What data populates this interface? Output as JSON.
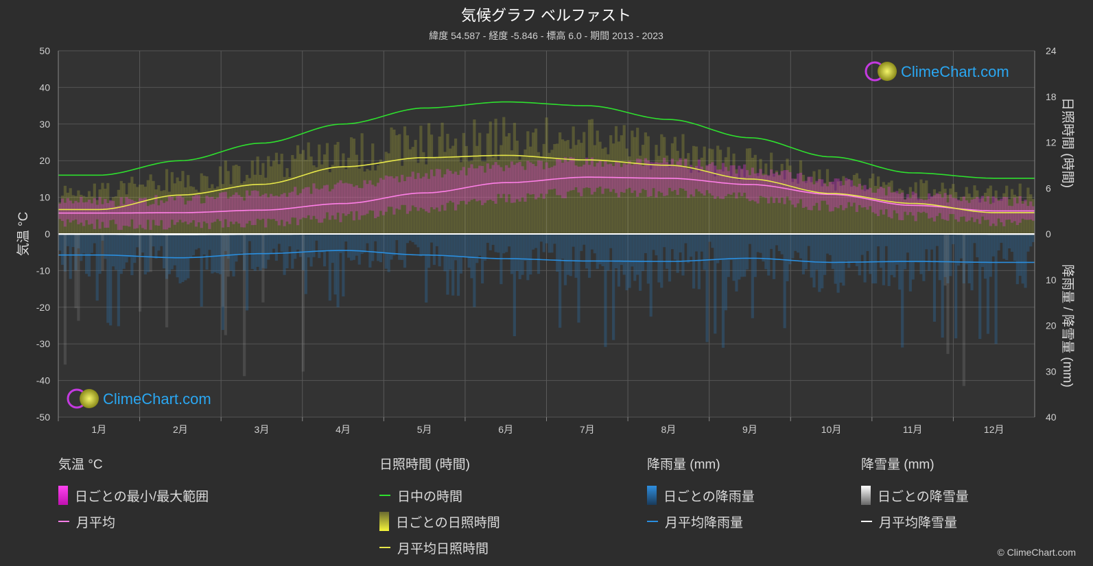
{
  "title": "気候グラフ ベルファスト",
  "subtitle": "緯度 54.587 - 経度 -5.846 - 標高 6.0 - 期間 2013 - 2023",
  "watermark": "ClimeChart.com",
  "copyright": "© ClimeChart.com",
  "colors": {
    "background": "#2d2d2d",
    "daylight": "#2ee02e",
    "sunshine_avg": "#e8e84a",
    "temp_avg": "#ff7fe8",
    "rain_avg": "#2a8fe0",
    "snow_avg": "#ffffff",
    "temp_range": "#e23ad6",
    "sunshine_bar": "#b8b83a",
    "rain_bar": "#2b6fa8",
    "snow_bar": "#9a9a9a",
    "watermark": "#2aa7f2"
  },
  "chart_data": {
    "type": "line",
    "x_categories": [
      "1月",
      "2月",
      "3月",
      "4月",
      "5月",
      "6月",
      "7月",
      "8月",
      "9月",
      "10月",
      "11月",
      "12月"
    ],
    "left_axis": {
      "label": "気温 °C",
      "range": [
        -50,
        50
      ],
      "ticks": [
        50,
        40,
        30,
        20,
        10,
        0,
        -10,
        -20,
        -30,
        -40,
        -50
      ]
    },
    "right_axis_top": {
      "label": "日照時間 (時間)",
      "range": [
        0,
        24
      ],
      "ticks": [
        24,
        18,
        12,
        6,
        0
      ]
    },
    "right_axis_bottom": {
      "label": "降雨量 / 降雪量 (mm)",
      "range": [
        0,
        40
      ],
      "ticks": [
        0,
        10,
        20,
        30,
        40
      ]
    },
    "grid": true,
    "series": [
      {
        "name": "日中の時間",
        "unit": "時間",
        "values": [
          7.7,
          9.6,
          11.9,
          14.4,
          16.5,
          17.3,
          16.8,
          15.0,
          12.6,
          10.1,
          8.0,
          7.3
        ]
      },
      {
        "name": "月平均日照時間",
        "unit": "時間",
        "values": [
          3.2,
          5.1,
          6.5,
          8.8,
          10.0,
          10.3,
          9.7,
          9.0,
          7.2,
          5.3,
          4.0,
          2.8
        ]
      },
      {
        "name": "月平均",
        "unit": "°C",
        "values": [
          5.7,
          5.8,
          6.5,
          8.3,
          11.2,
          14.0,
          15.5,
          15.2,
          13.5,
          10.8,
          7.8,
          6.3
        ]
      },
      {
        "name": "月平均降雨量",
        "unit": "mm",
        "values": [
          4.6,
          5.2,
          4.3,
          3.6,
          4.6,
          5.4,
          5.9,
          6.0,
          5.3,
          6.2,
          6.0,
          6.2
        ]
      },
      {
        "name": "月平均降雪量",
        "unit": "mm",
        "values": [
          0.1,
          0.2,
          0.1,
          0.0,
          0.0,
          0.0,
          0.0,
          0.0,
          0.0,
          0.0,
          0.0,
          0.1
        ]
      }
    ],
    "temp_range_monthly": {
      "min": [
        2.5,
        2.5,
        3.2,
        4.6,
        7.0,
        9.8,
        11.5,
        11.4,
        9.8,
        7.6,
        4.9,
        3.2
      ],
      "max": [
        8.8,
        9.2,
        10.8,
        13.2,
        16.2,
        18.5,
        19.8,
        19.4,
        17.5,
        14.2,
        10.8,
        9.0
      ]
    }
  },
  "legend": {
    "temperature": {
      "heading": "気温 °C",
      "items": [
        "日ごとの最小/最大範囲",
        "月平均"
      ]
    },
    "sunshine": {
      "heading": "日照時間 (時間)",
      "items": [
        "日中の時間",
        "日ごとの日照時間",
        "月平均日照時間"
      ]
    },
    "rain": {
      "heading": "降雨量 (mm)",
      "items": [
        "日ごとの降雨量",
        "月平均降雨量"
      ]
    },
    "snow": {
      "heading": "降雪量 (mm)",
      "items": [
        "日ごとの降雪量",
        "月平均降雪量"
      ]
    }
  }
}
